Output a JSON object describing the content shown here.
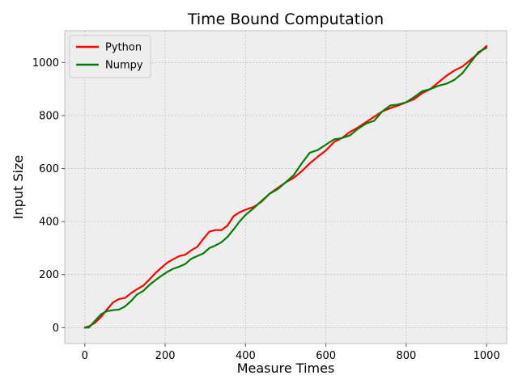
{
  "chart_data": {
    "type": "line",
    "title": "Time Bound Computation",
    "xlabel": "Measure Times",
    "ylabel": "Input Size",
    "xlim": [
      -50,
      1050
    ],
    "ylim": [
      -60,
      1120
    ],
    "xticks": [
      0,
      200,
      400,
      600,
      800,
      1000
    ],
    "yticks": [
      0,
      200,
      400,
      600,
      800,
      1000
    ],
    "grid": true,
    "legend_position": "top-left",
    "series": [
      {
        "name": "Python",
        "color": "#ff0000",
        "x": [
          0,
          10,
          25,
          40,
          55,
          70,
          85,
          100,
          115,
          130,
          145,
          160,
          175,
          190,
          205,
          220,
          235,
          250,
          265,
          280,
          295,
          310,
          325,
          340,
          355,
          370,
          385,
          400,
          420,
          440,
          460,
          480,
          500,
          520,
          540,
          560,
          580,
          600,
          620,
          640,
          660,
          680,
          700,
          720,
          740,
          760,
          780,
          800,
          820,
          840,
          860,
          880,
          900,
          920,
          940,
          960,
          980,
          1000
        ],
        "y": [
          0,
          5,
          18,
          40,
          68,
          95,
          108,
          112,
          130,
          145,
          158,
          180,
          205,
          225,
          245,
          258,
          270,
          275,
          292,
          305,
          335,
          362,
          368,
          368,
          385,
          420,
          435,
          445,
          455,
          475,
          505,
          527,
          548,
          565,
          590,
          620,
          645,
          668,
          700,
          715,
          738,
          755,
          775,
          795,
          815,
          828,
          838,
          850,
          862,
          885,
          900,
          925,
          950,
          970,
          985,
          1010,
          1035,
          1062
        ]
      },
      {
        "name": "Numpy",
        "color": "#008000",
        "x": [
          0,
          10,
          25,
          40,
          55,
          70,
          85,
          100,
          115,
          130,
          145,
          160,
          175,
          190,
          205,
          220,
          235,
          250,
          265,
          280,
          295,
          310,
          325,
          340,
          355,
          370,
          385,
          400,
          420,
          440,
          460,
          480,
          500,
          520,
          540,
          560,
          580,
          600,
          620,
          640,
          660,
          680,
          700,
          720,
          740,
          760,
          780,
          800,
          820,
          840,
          860,
          880,
          900,
          920,
          940,
          960,
          980,
          1000
        ],
        "y": [
          0,
          0,
          25,
          50,
          62,
          66,
          68,
          80,
          100,
          125,
          138,
          160,
          178,
          195,
          210,
          222,
          230,
          240,
          260,
          270,
          280,
          300,
          310,
          322,
          342,
          370,
          400,
          425,
          450,
          478,
          505,
          522,
          548,
          575,
          620,
          660,
          670,
          690,
          710,
          715,
          725,
          750,
          770,
          780,
          815,
          838,
          842,
          850,
          870,
          892,
          900,
          912,
          920,
          935,
          960,
          1000,
          1040,
          1055
        ]
      }
    ]
  }
}
